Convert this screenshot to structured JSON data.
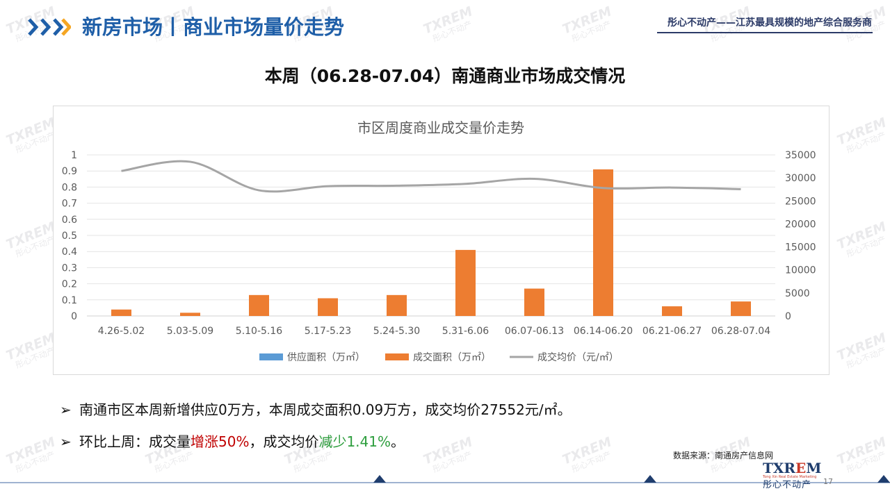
{
  "header": {
    "title": "新房市场丨商业市场量价走势",
    "slogan": "彤心不动产——江苏最具规模的地产综合服务商"
  },
  "slide_title": "本周（06.28-07.04）南通商业市场成交情况",
  "chart_data": {
    "type": "bar",
    "title": "市区周度商业成交量价走势",
    "categories": [
      "4.26-5.02",
      "5.03-5.09",
      "5.10-5.16",
      "5.17-5.23",
      "5.24-5.30",
      "5.31-6.06",
      "06.07-06.13",
      "06.14-06.20",
      "06.21-06.27",
      "06.28-07.04"
    ],
    "series": [
      {
        "name": "供应面积（万㎡）",
        "type": "bar",
        "axis": "left",
        "color": "#5b9bd5",
        "values": [
          0,
          0,
          0,
          0,
          0,
          0,
          0,
          0,
          0,
          0
        ]
      },
      {
        "name": "成交面积（万㎡）",
        "type": "bar",
        "axis": "left",
        "color": "#ed7d31",
        "values": [
          0.04,
          0.02,
          0.13,
          0.11,
          0.13,
          0.41,
          0.17,
          0.91,
          0.06,
          0.09
        ]
      },
      {
        "name": "成交均价（元/㎡）",
        "type": "line",
        "axis": "right",
        "color": "#a5a5a5",
        "values": [
          31500,
          33500,
          27300,
          28200,
          28300,
          28700,
          29800,
          27800,
          27900,
          27552
        ]
      }
    ],
    "y_left": {
      "min": 0,
      "max": 1,
      "ticks": [
        "0",
        "0.1",
        "0.2",
        "0.3",
        "0.4",
        "0.5",
        "0.6",
        "0.7",
        "0.8",
        "0.9",
        "1"
      ]
    },
    "y_right": {
      "min": 0,
      "max": 35000,
      "ticks": [
        "0",
        "5000",
        "10000",
        "15000",
        "20000",
        "25000",
        "30000",
        "35000"
      ]
    },
    "legend": "bottom",
    "grid": true
  },
  "bullets": {
    "b1": "南通市区本周新增供应0万方，本周成交面积0.09万方，成交均价27552元/㎡。",
    "b2_prefix": "环比上周：成交量",
    "b2_up": "增涨50%",
    "b2_mid": "，成交均价",
    "b2_down": "减少1.41%",
    "b2_suffix": "。"
  },
  "source": "数据来源：南通房产信息网",
  "footer": {
    "logo_main": "TXR",
    "logo_em": "E",
    "logo_end": "M",
    "logo_tag": "Tong Xin Real Estate Marketing",
    "logo_cn": "彤心不动产",
    "page": "17"
  },
  "watermark": {
    "line1": "TXREM",
    "line2": "彤心不动产"
  },
  "colors": {
    "brand_blue": "#1f5fa8",
    "arrow_orange": "#f5a623",
    "bar_orange": "#ed7d31",
    "line_gray": "#a5a5a5",
    "supply_blue": "#5b9bd5"
  }
}
